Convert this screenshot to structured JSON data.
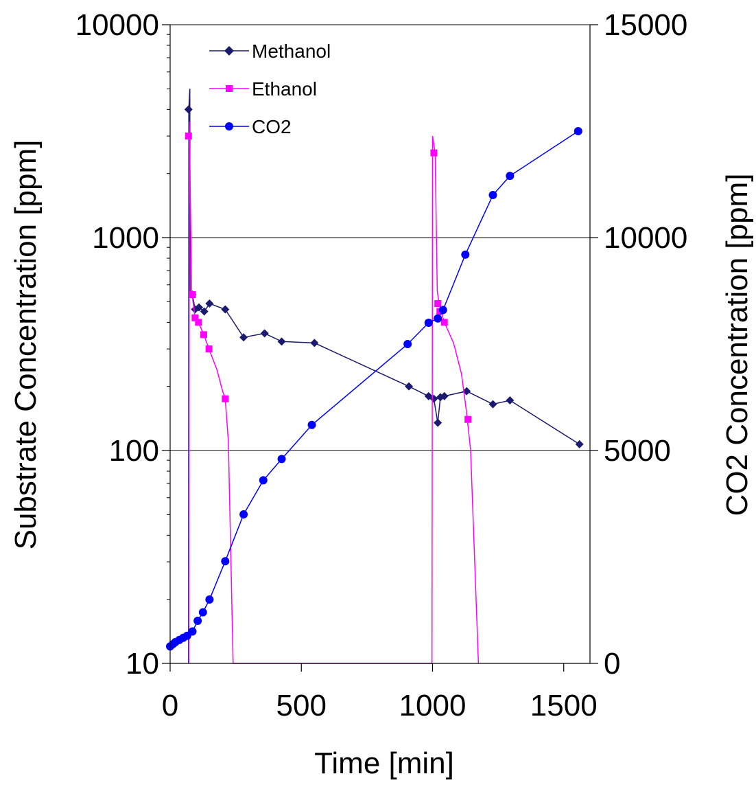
{
  "chart_data": {
    "type": "line",
    "title": "",
    "xlabel": "Time [min]",
    "ylabel_left": "Substrate Concentration [ppm]",
    "ylabel_right": "CO2 Concentration [ppm]",
    "x_range": [
      0,
      1600
    ],
    "x_ticks": [
      "0",
      "500",
      "1000",
      "1500"
    ],
    "y_left_scale": "log",
    "y_left_range": [
      10,
      10000
    ],
    "y_left_ticks": [
      "10",
      "100",
      "1000",
      "10000"
    ],
    "y_right_scale": "linear",
    "y_right_range": [
      0,
      15000
    ],
    "y_right_ticks": [
      "0",
      "5000",
      "10000",
      "15000"
    ],
    "grid": "horizontal gridlines at left-axis decades",
    "legend_position": "top-left",
    "series": [
      {
        "name": "Methanol",
        "axis": "left",
        "color": "#1a1a6e",
        "marker": "diamond",
        "line": [
          [
            70,
            10
          ],
          [
            71,
            4000
          ],
          [
            75,
            5000
          ],
          [
            76,
            540
          ],
          [
            85,
            540
          ],
          [
            95,
            460
          ],
          [
            110,
            470
          ],
          [
            130,
            450
          ],
          [
            150,
            490
          ],
          [
            210,
            460
          ],
          [
            280,
            340
          ],
          [
            360,
            355
          ],
          [
            425,
            325
          ],
          [
            550,
            320
          ],
          [
            910,
            200
          ],
          [
            985,
            180
          ],
          [
            1005,
            175
          ],
          [
            1020,
            135
          ],
          [
            1030,
            178
          ],
          [
            1045,
            180
          ],
          [
            1130,
            190
          ],
          [
            1230,
            165
          ],
          [
            1295,
            172
          ],
          [
            1560,
            107
          ]
        ],
        "points": [
          [
            70,
            4000
          ],
          [
            85,
            540
          ],
          [
            95,
            460
          ],
          [
            110,
            470
          ],
          [
            130,
            450
          ],
          [
            150,
            490
          ],
          [
            210,
            460
          ],
          [
            280,
            340
          ],
          [
            360,
            355
          ],
          [
            425,
            325
          ],
          [
            550,
            320
          ],
          [
            910,
            200
          ],
          [
            985,
            180
          ],
          [
            1005,
            175
          ],
          [
            1020,
            135
          ],
          [
            1030,
            178
          ],
          [
            1045,
            180
          ],
          [
            1130,
            190
          ],
          [
            1230,
            165
          ],
          [
            1295,
            172
          ],
          [
            1560,
            107
          ]
        ]
      },
      {
        "name": "Ethanol",
        "axis": "left",
        "color": "#ff00ff",
        "marker": "square",
        "line": [
          [
            72,
            10
          ],
          [
            73,
            3500
          ],
          [
            82,
            560
          ],
          [
            95,
            420
          ],
          [
            108,
            400
          ],
          [
            128,
            350
          ],
          [
            148,
            300
          ],
          [
            178,
            240
          ],
          [
            200,
            190
          ],
          [
            210,
            175
          ],
          [
            222,
            110
          ],
          [
            240,
            10
          ],
          [
            998,
            10
          ],
          [
            1000,
            3000
          ],
          [
            1010,
            2500
          ],
          [
            1018,
            560
          ],
          [
            1025,
            490
          ],
          [
            1032,
            450
          ],
          [
            1045,
            400
          ],
          [
            1080,
            320
          ],
          [
            1110,
            230
          ],
          [
            1130,
            150
          ],
          [
            1145,
            100
          ],
          [
            1175,
            10
          ]
        ],
        "points": [
          [
            70,
            3000
          ],
          [
            85,
            540
          ],
          [
            95,
            420
          ],
          [
            108,
            400
          ],
          [
            128,
            350
          ],
          [
            148,
            300
          ],
          [
            210,
            175
          ],
          [
            1005,
            2500
          ],
          [
            1020,
            490
          ],
          [
            1028,
            450
          ],
          [
            1045,
            400
          ],
          [
            1135,
            140
          ]
        ]
      },
      {
        "name": "CO2",
        "axis": "right",
        "color": "#0000ff",
        "marker": "circle",
        "points": [
          [
            0,
            400
          ],
          [
            10,
            450
          ],
          [
            20,
            500
          ],
          [
            35,
            550
          ],
          [
            50,
            600
          ],
          [
            65,
            650
          ],
          [
            85,
            750
          ],
          [
            105,
            1000
          ],
          [
            125,
            1200
          ],
          [
            150,
            1500
          ],
          [
            210,
            2400
          ],
          [
            280,
            3500
          ],
          [
            355,
            4300
          ],
          [
            425,
            4800
          ],
          [
            540,
            5600
          ],
          [
            905,
            7500
          ],
          [
            985,
            8000
          ],
          [
            1020,
            8100
          ],
          [
            1040,
            8300
          ],
          [
            1125,
            9600
          ],
          [
            1230,
            11000
          ],
          [
            1295,
            11450
          ],
          [
            1555,
            12500
          ]
        ]
      }
    ]
  }
}
